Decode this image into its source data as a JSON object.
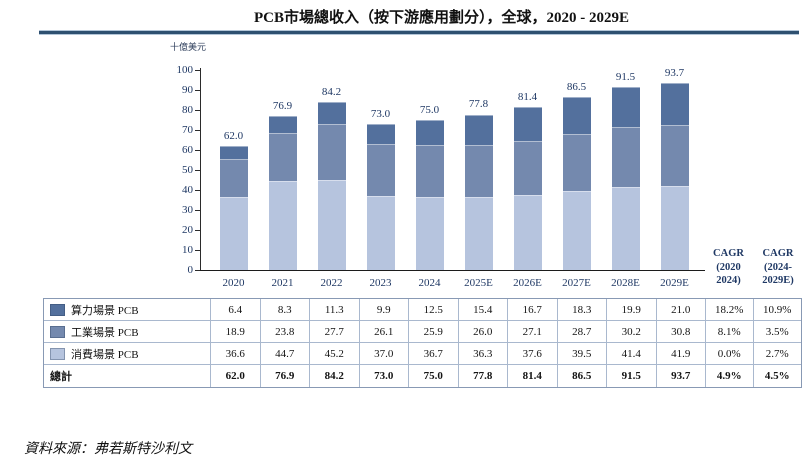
{
  "title": "PCB市場總收入（按下游應用劃分），全球，2020 - 2029E",
  "unit_label": "十億美元",
  "source": "資料來源：弗若斯特沙利文",
  "colors": {
    "compute_pcb": "#53709D",
    "industrial_pcb": "#7489AE",
    "consumer_pcb": "#B6C4DE",
    "axis_text": "#1F3864",
    "title_rule": "#2E5070"
  },
  "cagr_headers": [
    {
      "lines": [
        "CAGR",
        "(2020",
        "2024)"
      ]
    },
    {
      "lines": [
        "CAGR",
        "(2024-",
        "2029E)"
      ]
    }
  ],
  "chart_data": {
    "type": "bar",
    "stacked": true,
    "title": "PCB市場總收入（按下游應用劃分），全球，2020 - 2029E",
    "ylabel": "十億美元",
    "xlabel": "",
    "ylim": [
      0,
      100
    ],
    "yticks": [
      0,
      10,
      20,
      30,
      40,
      50,
      60,
      70,
      80,
      90,
      100
    ],
    "grid": false,
    "legend_position": "table-left",
    "categories": [
      "2020",
      "2021",
      "2022",
      "2023",
      "2024",
      "2025E",
      "2026E",
      "2027E",
      "2028E",
      "2029E"
    ],
    "series": [
      {
        "name": "算力場景 PCB",
        "color": "#53709D",
        "stack_order": "top",
        "values": [
          6.4,
          8.3,
          11.3,
          9.9,
          12.5,
          15.4,
          16.7,
          18.3,
          19.9,
          21.0
        ],
        "cagr": [
          "18.2%",
          "10.9%"
        ]
      },
      {
        "name": "工業場景 PCB",
        "color": "#7489AE",
        "stack_order": "middle",
        "values": [
          18.9,
          23.8,
          27.7,
          26.1,
          25.9,
          26.0,
          27.1,
          28.7,
          30.2,
          30.8
        ],
        "cagr": [
          "8.1%",
          "3.5%"
        ]
      },
      {
        "name": "消費場景 PCB",
        "color": "#B6C4DE",
        "stack_order": "bottom",
        "values": [
          36.6,
          44.7,
          45.2,
          37.0,
          36.7,
          36.3,
          37.6,
          39.5,
          41.4,
          41.9
        ],
        "cagr": [
          "0.0%",
          "2.7%"
        ]
      }
    ],
    "totals": {
      "label": "總計",
      "values": [
        62.0,
        76.9,
        84.2,
        73.0,
        75.0,
        77.8,
        81.4,
        86.5,
        91.5,
        93.7
      ],
      "cagr": [
        "4.9%",
        "4.5%"
      ]
    }
  }
}
